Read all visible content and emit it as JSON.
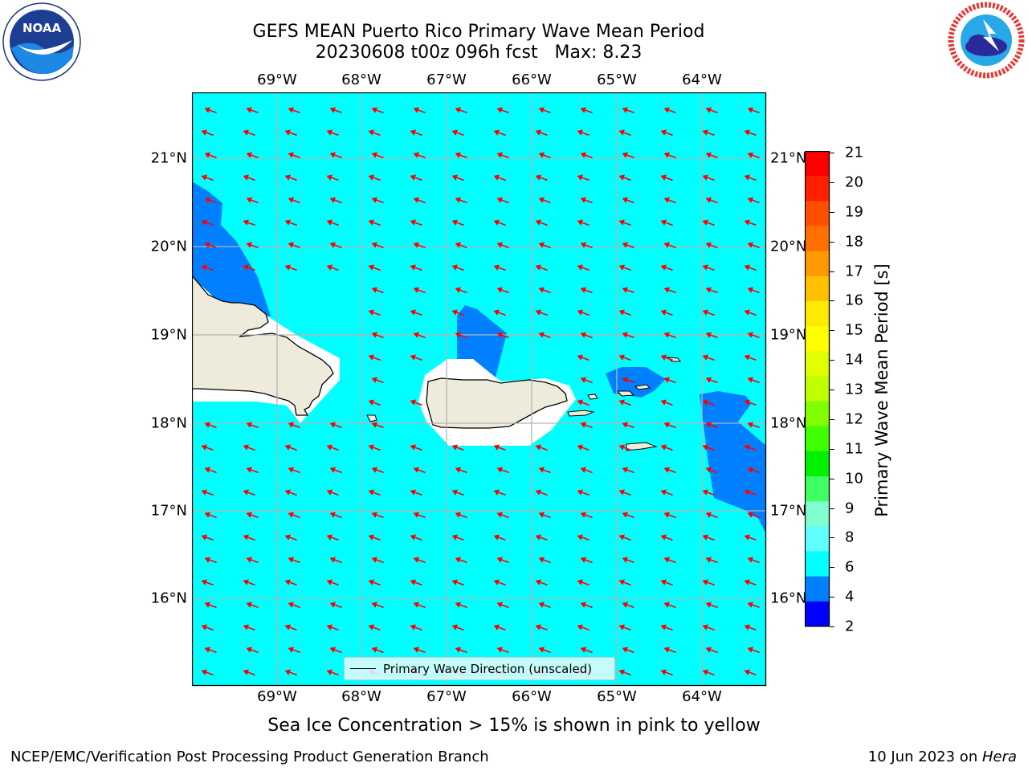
{
  "title": {
    "line1": "GEFS MEAN Puerto Rico Primary Wave Mean Period",
    "line2": "20230608 t00z 096h fcst   Max: 8.23"
  },
  "logos": {
    "noaa": {
      "text": "NOAA",
      "ring_text": "NATIONAL OCEANIC AND ATMOSPHERIC ADMINISTRATION · U.S. DEPARTMENT OF COMMERCE"
    },
    "nws": {
      "ring_text": "NATIONAL WEATHER SERVICE"
    }
  },
  "map": {
    "lon_labels": [
      "69°W",
      "68°W",
      "67°W",
      "66°W",
      "65°W",
      "64°W"
    ],
    "lat_labels": [
      "21°N",
      "20°N",
      "19°N",
      "18°N",
      "17°N",
      "16°N"
    ],
    "ocean_color": "#00ffff",
    "low_period_color": "#0080ff",
    "land_color": "#efebdb",
    "arrow_color": "#ff0000",
    "legend_label": "Primary Wave Direction (unscaled)"
  },
  "colorbar": {
    "label": "Primary Wave Mean Period [s]",
    "ticks": [
      "21",
      "20",
      "19",
      "18",
      "17",
      "16",
      "15",
      "14",
      "13",
      "12",
      "11",
      "10",
      "9",
      "8",
      "6",
      "4",
      "2"
    ],
    "colors": [
      "#ff0000",
      "#ff2000",
      "#ff5000",
      "#ff7000",
      "#ff9900",
      "#ffc000",
      "#ffea00",
      "#ffff00",
      "#e0ff00",
      "#c0ff00",
      "#80ff00",
      "#40ff00",
      "#00f000",
      "#40ff60",
      "#80ffd0",
      "#60ffff",
      "#00ffff",
      "#0080ff",
      "#0000ff"
    ]
  },
  "ice_note": "Sea Ice Concentration > 15% is shown in pink to yellow",
  "footer": {
    "left": "NCEP/EMC/Verification Post Processing Product Generation Branch",
    "right_date": "10 Jun 2023 on ",
    "right_host": "Hera"
  }
}
